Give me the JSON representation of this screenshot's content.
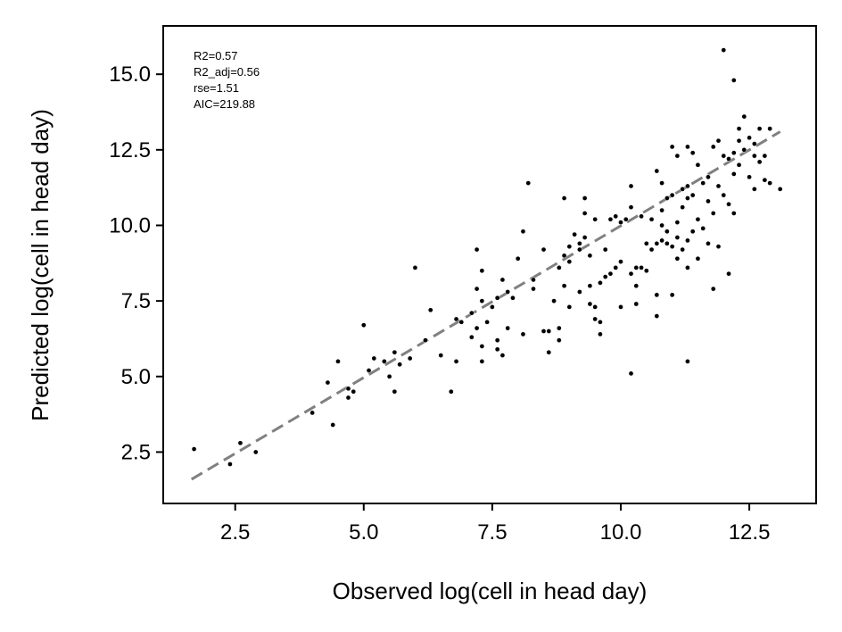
{
  "chart_data": {
    "type": "scatter",
    "xlabel": "Observed log(cell in head day)",
    "ylabel": "Predicted log(cell in head day)",
    "xlim": [
      1.1,
      13.8
    ],
    "ylim": [
      0.8,
      16.6
    ],
    "xticks": [
      {
        "value": 2.5,
        "label": "2.5"
      },
      {
        "value": 5.0,
        "label": "5.0"
      },
      {
        "value": 7.5,
        "label": "7.5"
      },
      {
        "value": 10.0,
        "label": "10.0"
      },
      {
        "value": 12.5,
        "label": "12.5"
      }
    ],
    "yticks": [
      {
        "value": 2.5,
        "label": "2.5"
      },
      {
        "value": 5.0,
        "label": "5.0"
      },
      {
        "value": 7.5,
        "label": "7.5"
      },
      {
        "value": 10.0,
        "label": "10.0"
      },
      {
        "value": 12.5,
        "label": "12.5"
      },
      {
        "value": 15.0,
        "label": "15.0"
      }
    ],
    "grid": false,
    "stats": [
      "R2=0.57",
      "R2_adj=0.56",
      "rse=1.51",
      "AIC=219.88"
    ],
    "fit_line": {
      "x": [
        1.65,
        13.1
      ],
      "y": [
        1.6,
        13.1
      ],
      "color": "#808080",
      "style": "dashed"
    },
    "point_color": "#000000",
    "points": [
      [
        1.7,
        2.6
      ],
      [
        2.4,
        2.1
      ],
      [
        2.6,
        2.8
      ],
      [
        2.9,
        2.5
      ],
      [
        4.0,
        3.8
      ],
      [
        4.3,
        4.8
      ],
      [
        4.4,
        3.4
      ],
      [
        4.5,
        5.5
      ],
      [
        4.7,
        4.6
      ],
      [
        4.7,
        4.3
      ],
      [
        4.8,
        4.5
      ],
      [
        5.0,
        6.7
      ],
      [
        5.1,
        5.2
      ],
      [
        5.2,
        5.6
      ],
      [
        5.4,
        5.5
      ],
      [
        5.5,
        5.0
      ],
      [
        5.6,
        4.5
      ],
      [
        5.6,
        5.8
      ],
      [
        5.7,
        5.4
      ],
      [
        5.9,
        5.6
      ],
      [
        6.0,
        8.6
      ],
      [
        6.2,
        6.2
      ],
      [
        6.3,
        7.2
      ],
      [
        6.5,
        5.7
      ],
      [
        6.7,
        4.5
      ],
      [
        6.8,
        5.5
      ],
      [
        6.8,
        6.9
      ],
      [
        6.9,
        6.8
      ],
      [
        7.1,
        6.3
      ],
      [
        7.1,
        7.1
      ],
      [
        7.2,
        6.6
      ],
      [
        7.2,
        7.9
      ],
      [
        7.2,
        9.2
      ],
      [
        7.3,
        8.5
      ],
      [
        7.3,
        7.5
      ],
      [
        7.3,
        5.5
      ],
      [
        7.3,
        6.0
      ],
      [
        7.4,
        6.8
      ],
      [
        7.5,
        7.3
      ],
      [
        7.6,
        6.2
      ],
      [
        7.6,
        5.9
      ],
      [
        7.6,
        7.6
      ],
      [
        7.7,
        8.2
      ],
      [
        7.7,
        5.7
      ],
      [
        7.8,
        6.6
      ],
      [
        7.8,
        7.8
      ],
      [
        7.9,
        7.6
      ],
      [
        8.0,
        8.9
      ],
      [
        8.1,
        9.8
      ],
      [
        8.1,
        6.4
      ],
      [
        8.2,
        11.4
      ],
      [
        8.3,
        8.2
      ],
      [
        8.3,
        7.9
      ],
      [
        8.5,
        6.5
      ],
      [
        8.5,
        9.2
      ],
      [
        8.6,
        5.8
      ],
      [
        8.6,
        6.5
      ],
      [
        8.7,
        7.5
      ],
      [
        8.8,
        8.6
      ],
      [
        8.8,
        6.2
      ],
      [
        8.8,
        6.6
      ],
      [
        8.9,
        10.9
      ],
      [
        8.9,
        9.0
      ],
      [
        8.9,
        8.0
      ],
      [
        9.0,
        7.3
      ],
      [
        9.0,
        8.8
      ],
      [
        9.0,
        9.3
      ],
      [
        9.1,
        9.7
      ],
      [
        9.2,
        9.2
      ],
      [
        9.2,
        7.8
      ],
      [
        9.2,
        9.4
      ],
      [
        9.3,
        9.6
      ],
      [
        9.3,
        10.4
      ],
      [
        9.3,
        10.9
      ],
      [
        9.4,
        7.4
      ],
      [
        9.4,
        8.0
      ],
      [
        9.4,
        9.0
      ],
      [
        9.5,
        10.2
      ],
      [
        9.5,
        7.3
      ],
      [
        9.5,
        6.9
      ],
      [
        9.6,
        6.8
      ],
      [
        9.6,
        8.1
      ],
      [
        9.6,
        6.4
      ],
      [
        9.7,
        9.2
      ],
      [
        9.7,
        8.3
      ],
      [
        9.8,
        10.2
      ],
      [
        9.8,
        8.4
      ],
      [
        9.9,
        10.3
      ],
      [
        9.9,
        8.6
      ],
      [
        10.0,
        8.8
      ],
      [
        10.0,
        10.1
      ],
      [
        10.0,
        7.3
      ],
      [
        10.1,
        10.2
      ],
      [
        10.2,
        5.1
      ],
      [
        10.2,
        8.4
      ],
      [
        10.2,
        10.6
      ],
      [
        10.2,
        11.3
      ],
      [
        10.3,
        7.4
      ],
      [
        10.3,
        8.0
      ],
      [
        10.3,
        8.6
      ],
      [
        10.4,
        8.6
      ],
      [
        10.4,
        10.3
      ],
      [
        10.5,
        9.4
      ],
      [
        10.5,
        8.5
      ],
      [
        10.6,
        9.2
      ],
      [
        10.6,
        10.2
      ],
      [
        10.7,
        11.8
      ],
      [
        10.7,
        9.4
      ],
      [
        10.7,
        7.0
      ],
      [
        10.7,
        7.7
      ],
      [
        10.8,
        10.0
      ],
      [
        10.8,
        9.5
      ],
      [
        10.8,
        10.5
      ],
      [
        10.8,
        11.4
      ],
      [
        10.9,
        9.4
      ],
      [
        10.9,
        9.8
      ],
      [
        10.9,
        10.9
      ],
      [
        11.0,
        12.6
      ],
      [
        11.0,
        11.0
      ],
      [
        11.0,
        9.3
      ],
      [
        11.0,
        7.7
      ],
      [
        11.1,
        12.3
      ],
      [
        11.1,
        10.1
      ],
      [
        11.1,
        9.6
      ],
      [
        11.1,
        8.9
      ],
      [
        11.2,
        11.2
      ],
      [
        11.2,
        10.6
      ],
      [
        11.2,
        9.2
      ],
      [
        11.3,
        12.6
      ],
      [
        11.3,
        11.3
      ],
      [
        11.3,
        10.9
      ],
      [
        11.3,
        9.5
      ],
      [
        11.3,
        8.6
      ],
      [
        11.3,
        5.5
      ],
      [
        11.4,
        12.4
      ],
      [
        11.4,
        11.0
      ],
      [
        11.4,
        9.8
      ],
      [
        11.5,
        12.0
      ],
      [
        11.5,
        10.2
      ],
      [
        11.5,
        8.9
      ],
      [
        11.6,
        11.4
      ],
      [
        11.6,
        9.9
      ],
      [
        11.7,
        11.6
      ],
      [
        11.7,
        10.8
      ],
      [
        11.7,
        9.4
      ],
      [
        11.8,
        12.6
      ],
      [
        11.8,
        10.4
      ],
      [
        11.8,
        7.9
      ],
      [
        11.9,
        12.8
      ],
      [
        11.9,
        11.3
      ],
      [
        11.9,
        9.3
      ],
      [
        12.0,
        15.8
      ],
      [
        12.0,
        12.3
      ],
      [
        12.0,
        11.0
      ],
      [
        12.1,
        12.2
      ],
      [
        12.1,
        10.7
      ],
      [
        12.1,
        8.4
      ],
      [
        12.2,
        14.8
      ],
      [
        12.2,
        12.4
      ],
      [
        12.2,
        11.7
      ],
      [
        12.2,
        10.4
      ],
      [
        12.3,
        13.2
      ],
      [
        12.3,
        12.8
      ],
      [
        12.3,
        12.0
      ],
      [
        12.4,
        13.6
      ],
      [
        12.4,
        12.5
      ],
      [
        12.5,
        12.9
      ],
      [
        12.5,
        11.6
      ],
      [
        12.6,
        12.7
      ],
      [
        12.6,
        12.3
      ],
      [
        12.6,
        11.2
      ],
      [
        12.7,
        13.2
      ],
      [
        12.7,
        12.1
      ],
      [
        12.8,
        12.3
      ],
      [
        12.8,
        11.5
      ],
      [
        12.9,
        13.2
      ],
      [
        12.9,
        11.4
      ],
      [
        13.1,
        11.2
      ]
    ]
  }
}
